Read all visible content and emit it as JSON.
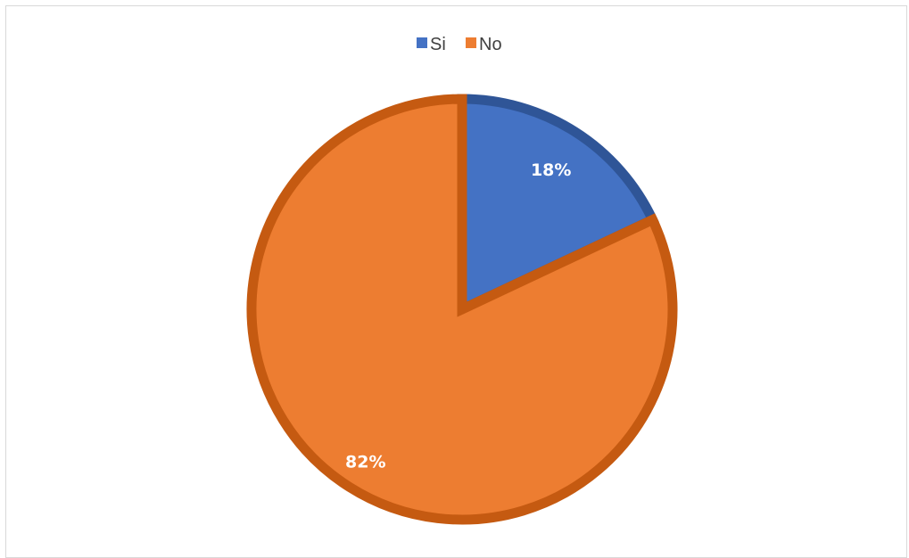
{
  "chart_data": {
    "type": "pie",
    "legend_position": "top",
    "slices": [
      {
        "name": "Si",
        "value": 18,
        "label": "18%",
        "color": "#4472C4",
        "border_color": "#2F5597"
      },
      {
        "name": "No",
        "value": 82,
        "label": "82%",
        "color": "#ED7D31",
        "border_color": "#C55A11"
      }
    ]
  }
}
